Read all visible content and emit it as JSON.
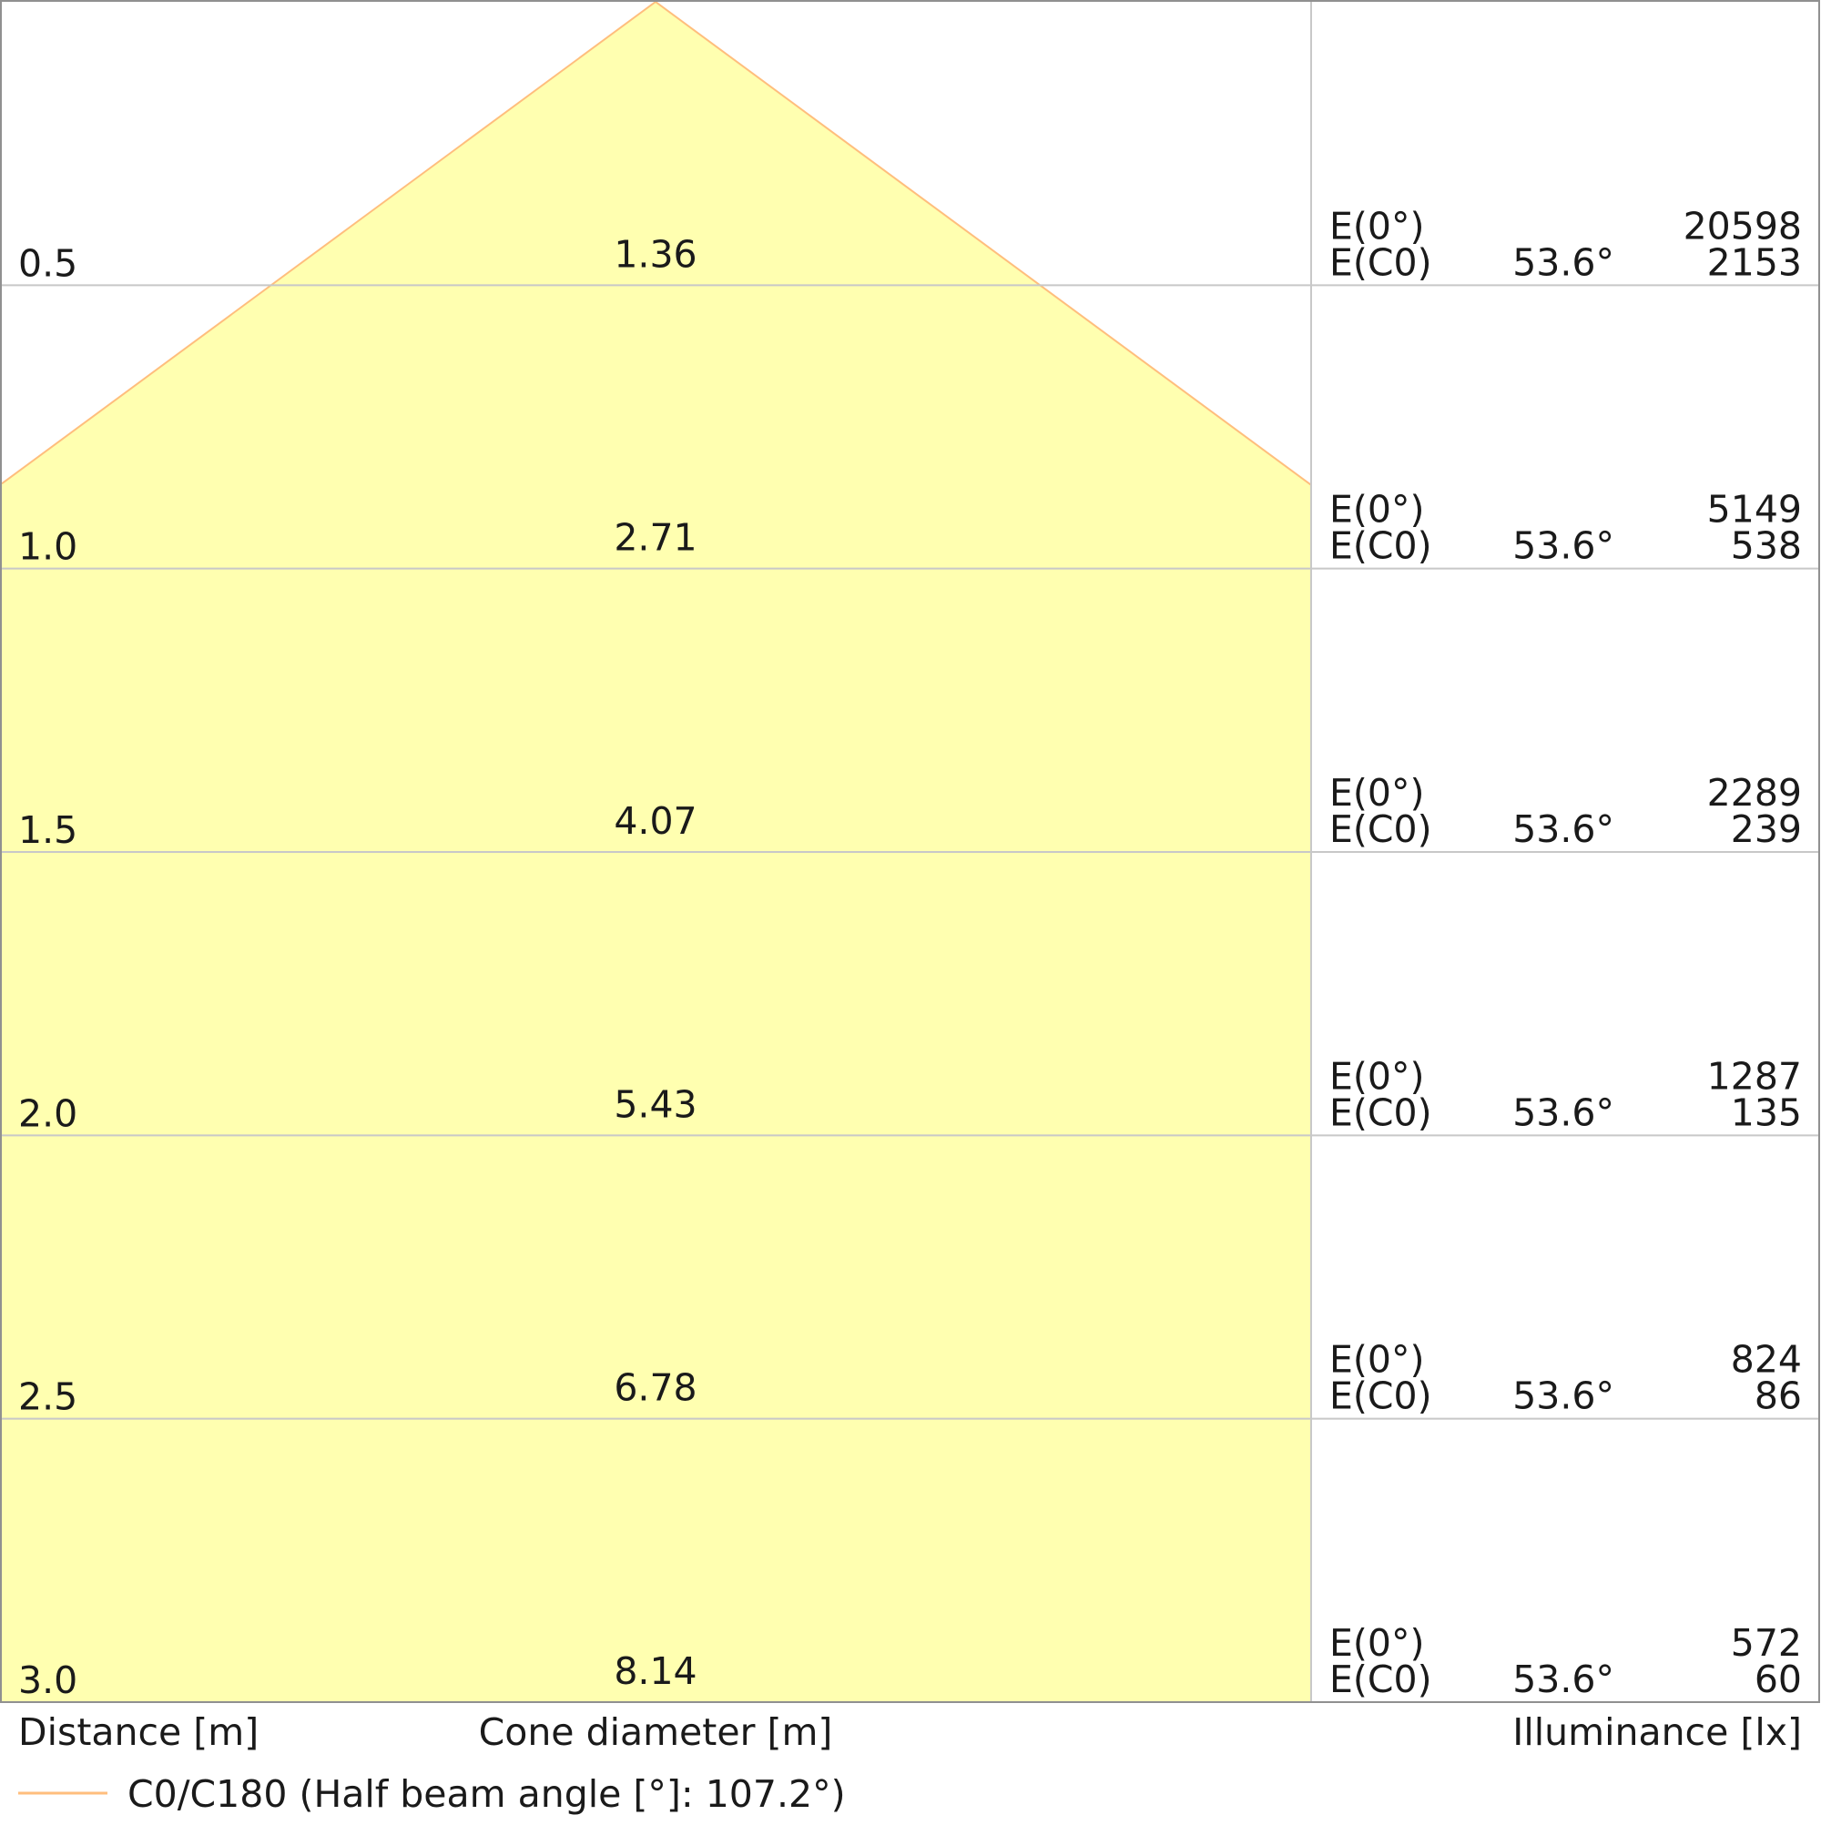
{
  "chart_data": {
    "type": "cone",
    "distance_label": "Distance [m]",
    "cone_label": "Cone diameter [m]",
    "illuminance_label": "Illuminance [lx]",
    "e0_label": "E(0°)",
    "ec0_label": "E(C0)",
    "rows": [
      {
        "distance": "0.5",
        "diameter": "1.36",
        "angle": "53.6°",
        "e0": "20598",
        "ec0": "2153"
      },
      {
        "distance": "1.0",
        "diameter": "2.71",
        "angle": "53.6°",
        "e0": "5149",
        "ec0": "538"
      },
      {
        "distance": "1.5",
        "diameter": "4.07",
        "angle": "53.6°",
        "e0": "2289",
        "ec0": "239"
      },
      {
        "distance": "2.0",
        "diameter": "5.43",
        "angle": "53.6°",
        "e0": "1287",
        "ec0": "135"
      },
      {
        "distance": "2.5",
        "diameter": "6.78",
        "angle": "53.6°",
        "e0": "824",
        "ec0": "86"
      },
      {
        "distance": "3.0",
        "diameter": "8.14",
        "angle": "53.6°",
        "e0": "572",
        "ec0": "60"
      }
    ],
    "half_beam_angle": 107.2,
    "max_distance": 3.0,
    "legend": "C0/C180 (Half beam angle [°]: 107.2°)",
    "colors": {
      "cone_fill": "#ffffb0",
      "cone_edge": "#ffbe7d",
      "grid": "#c8c8c8",
      "border": "#909090"
    }
  }
}
